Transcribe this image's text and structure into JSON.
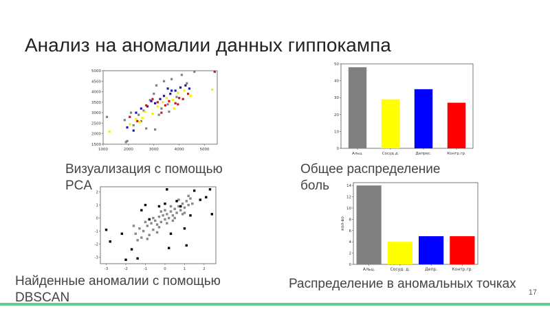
{
  "slide": {
    "title": "Анализ на аномалии данных гиппокампа",
    "captions": {
      "pca": [
        "Визуализация с помощью",
        "PCA"
      ],
      "bars1": [
        "Общее распределение",
        "боль"
      ],
      "dbscan": [
        "Найденные аномалии с помощью",
        "DBSCAN"
      ],
      "bars2": "Распределение в аномальных точках"
    },
    "page_number": "17",
    "accent_color": "#5fcf8f"
  },
  "chart_data": [
    {
      "type": "scatter",
      "xlim": [
        1000,
        5500
      ],
      "ylim": [
        1500,
        5000
      ],
      "xticks": [
        1000,
        2000,
        3000,
        4000,
        5000
      ],
      "yticks": [
        1500,
        2000,
        2500,
        3000,
        3500,
        4000,
        4500,
        5000
      ],
      "series": [
        {
          "color": "#808080",
          "points": [
            [
              1150,
              2800
            ],
            [
              1850,
              2650
            ],
            [
              1900,
              1600
            ],
            [
              2200,
              2400
            ],
            [
              2400,
              2900
            ],
            [
              2600,
              3100
            ],
            [
              2700,
              2250
            ],
            [
              2850,
              3600
            ],
            [
              3000,
              3900
            ],
            [
              3100,
              4300
            ],
            [
              3300,
              3200
            ],
            [
              3400,
              4500
            ],
            [
              3550,
              3400
            ],
            [
              3700,
              4600
            ],
            [
              3900,
              3750
            ],
            [
              4100,
              4800
            ],
            [
              4300,
              4400
            ],
            [
              4600,
              4950
            ],
            [
              2100,
              3000
            ],
            [
              2500,
              2600
            ],
            [
              3200,
              2900
            ],
            [
              3600,
              3050
            ],
            [
              1950,
              1650
            ],
            [
              3050,
              2200
            ]
          ]
        },
        {
          "color": "#f2f200",
          "points": [
            [
              1250,
              2100
            ],
            [
              2050,
              2450
            ],
            [
              2300,
              2700
            ],
            [
              2550,
              2750
            ],
            [
              2650,
              3050
            ],
            [
              2950,
              2950
            ],
            [
              3150,
              3300
            ],
            [
              3350,
              3500
            ],
            [
              3500,
              3700
            ],
            [
              3750,
              3600
            ],
            [
              3950,
              3950
            ],
            [
              4200,
              4050
            ],
            [
              4450,
              3800
            ],
            [
              5300,
              4100
            ],
            [
              2450,
              2550
            ],
            [
              3800,
              3200
            ]
          ]
        },
        {
          "color": "#1a1ab8",
          "points": [
            [
              1950,
              2300
            ],
            [
              2300,
              3000
            ],
            [
              2500,
              3200
            ],
            [
              2750,
              3300
            ],
            [
              3050,
              3450
            ],
            [
              3250,
              3650
            ],
            [
              3400,
              3800
            ],
            [
              3650,
              3900
            ],
            [
              3850,
              4050
            ],
            [
              4050,
              4200
            ],
            [
              4250,
              4300
            ],
            [
              3700,
              4050
            ],
            [
              2900,
              3550
            ],
            [
              3550,
              4150
            ],
            [
              2200,
              2150
            ],
            [
              4400,
              4150
            ]
          ]
        },
        {
          "color": "#e01010",
          "points": [
            [
              2050,
              2800
            ],
            [
              2350,
              2600
            ],
            [
              2700,
              3350
            ],
            [
              2950,
              3650
            ],
            [
              3150,
              3500
            ],
            [
              3450,
              3350
            ],
            [
              3600,
              3550
            ],
            [
              3850,
              3450
            ],
            [
              4000,
              3700
            ],
            [
              4150,
              3650
            ],
            [
              4350,
              3900
            ],
            [
              5400,
              4950
            ],
            [
              3300,
              3000
            ],
            [
              3950,
              3400
            ]
          ]
        }
      ]
    },
    {
      "type": "bar",
      "categories": [
        "Альц.",
        "Сосуд.д.",
        "Депрес.",
        "Контр.гр."
      ],
      "values": [
        48,
        29,
        35,
        27
      ],
      "colors": [
        "#808080",
        "#ffff00",
        "#0000ff",
        "#ff0000"
      ],
      "ylim": [
        0,
        50
      ],
      "yticks": [
        0,
        10,
        20,
        30,
        40,
        50
      ]
    },
    {
      "type": "scatter",
      "xlim": [
        -3.3,
        2.6
      ],
      "ylim": [
        -3.5,
        2.4
      ],
      "xticks": [
        -3,
        -2,
        -1,
        0,
        1,
        2
      ],
      "yticks": [
        -3,
        -2,
        -1,
        0,
        1,
        2
      ],
      "series": [
        {
          "color": "#888888",
          "points": [
            [
              -1.5,
              -1.2
            ],
            [
              -1.3,
              -0.8
            ],
            [
              -1.1,
              -1.0
            ],
            [
              -0.9,
              -0.6
            ],
            [
              -0.7,
              -0.4
            ],
            [
              -0.6,
              -0.9
            ],
            [
              -0.5,
              -0.2
            ],
            [
              -0.4,
              -0.5
            ],
            [
              -0.3,
              0.1
            ],
            [
              -0.2,
              -0.3
            ],
            [
              -0.1,
              0.2
            ],
            [
              0.0,
              -0.1
            ],
            [
              0.1,
              0.3
            ],
            [
              0.2,
              0.0
            ],
            [
              0.3,
              0.5
            ],
            [
              0.4,
              0.2
            ],
            [
              0.5,
              0.7
            ],
            [
              0.6,
              0.4
            ],
            [
              0.7,
              0.9
            ],
            [
              0.8,
              0.6
            ],
            [
              0.9,
              1.1
            ],
            [
              1.0,
              0.8
            ],
            [
              1.1,
              1.3
            ],
            [
              1.2,
              1.0
            ],
            [
              1.3,
              1.5
            ],
            [
              -1.2,
              -1.5
            ],
            [
              -0.8,
              -1.3
            ],
            [
              -0.3,
              -0.7
            ],
            [
              0.1,
              -0.4
            ],
            [
              0.5,
              0.0
            ],
            [
              0.9,
              0.3
            ],
            [
              1.4,
              1.1
            ],
            [
              -1.6,
              -0.6
            ],
            [
              -1.0,
              -0.3
            ],
            [
              -0.2,
              0.5
            ],
            [
              0.3,
              0.9
            ],
            [
              0.7,
              1.4
            ],
            [
              1.2,
              1.7
            ],
            [
              -0.6,
              0.0
            ],
            [
              0.0,
              0.6
            ],
            [
              -0.9,
              -1.6
            ],
            [
              -0.4,
              -1.1
            ],
            [
              0.4,
              -0.2
            ],
            [
              1.0,
              0.4
            ],
            [
              -1.4,
              -1.7
            ]
          ]
        },
        {
          "color": "#000000",
          "points": [
            [
              -3.0,
              -0.9
            ],
            [
              -2.8,
              -1.8
            ],
            [
              -2.0,
              -3.2
            ],
            [
              -2.2,
              -1.2
            ],
            [
              -1.7,
              -2.4
            ],
            [
              -1.4,
              -3.1
            ],
            [
              -1.0,
              1.0
            ],
            [
              -0.8,
              -0.1
            ],
            [
              -0.3,
              0.9
            ],
            [
              0.0,
              1.1
            ],
            [
              0.1,
              2.2
            ],
            [
              0.3,
              -1.2
            ],
            [
              0.6,
              1.3
            ],
            [
              0.8,
              0.9
            ],
            [
              1.0,
              -0.8
            ],
            [
              1.5,
              2.1
            ],
            [
              1.8,
              1.4
            ],
            [
              2.1,
              1.6
            ],
            [
              2.3,
              2.2
            ],
            [
              1.3,
              0.2
            ],
            [
              -1.2,
              0.6
            ],
            [
              0.2,
              -2.3
            ],
            [
              1.1,
              -2.1
            ],
            [
              2.4,
              0.3
            ]
          ]
        }
      ]
    },
    {
      "type": "bar",
      "categories": [
        "Альц.",
        "Сосуд. д.",
        "Депр.",
        "Контр.гр."
      ],
      "values": [
        14,
        4,
        5,
        5
      ],
      "colors": [
        "#808080",
        "#ffff00",
        "#0000ff",
        "#ff0000"
      ],
      "ylim": [
        0,
        14.5
      ],
      "yticks": [
        0,
        2,
        4,
        6,
        8,
        10,
        12,
        14
      ],
      "ylabel": "кол-во"
    }
  ]
}
